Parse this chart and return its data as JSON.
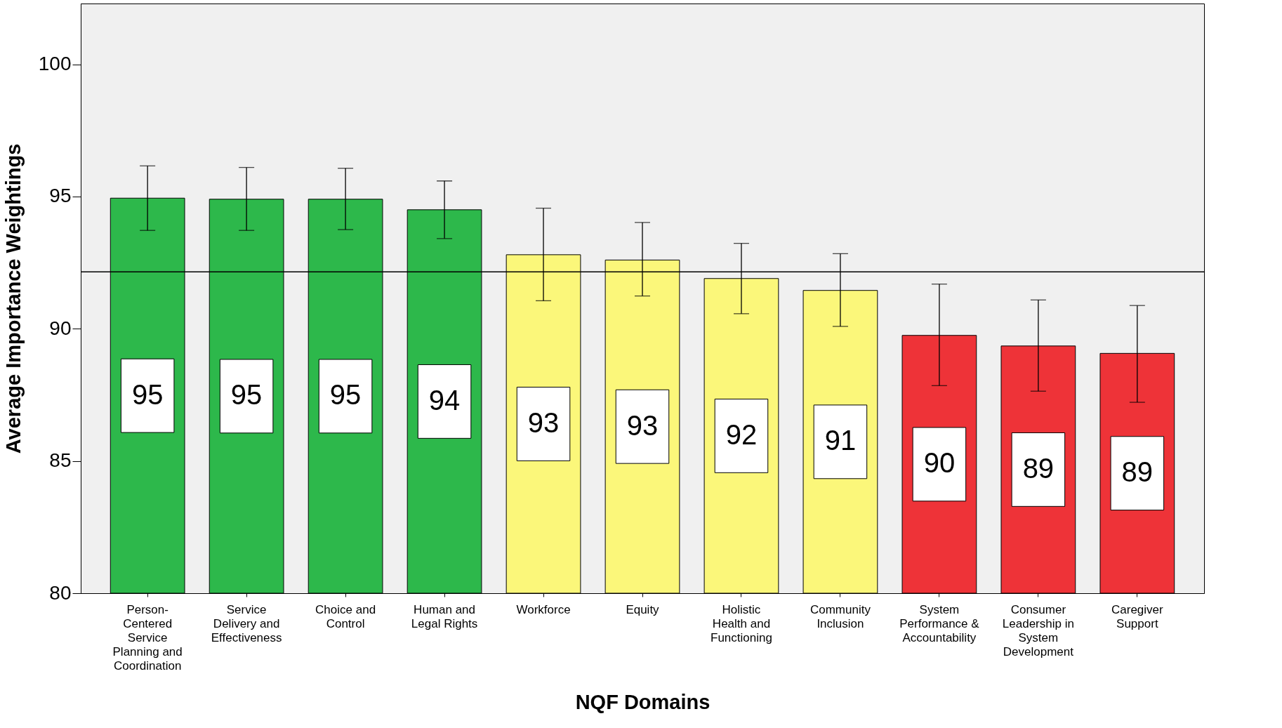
{
  "chart_data": {
    "type": "bar",
    "xlabel": "NQF Domains",
    "ylabel": "Average Importance Weightings",
    "categories": [
      "Person-Centered Service Planning and Coordination",
      "Service Delivery and Effectiveness",
      "Choice and Control",
      "Human and Legal Rights",
      "Workforce",
      "Equity",
      "Holistic Health and Functioning",
      "Community Inclusion",
      "System Performance & Accountability",
      "Consumer Leadership in System Development",
      "Caregiver Support"
    ],
    "values": [
      94.94,
      94.9,
      94.9,
      94.5,
      92.8,
      92.6,
      91.9,
      91.45,
      89.75,
      89.35,
      89.07
    ],
    "value_labels": [
      "95",
      "95",
      "95",
      "94",
      "93",
      "93",
      "92",
      "91",
      "90",
      "89",
      "89"
    ],
    "errors": [
      [
        93.72,
        96.16
      ],
      [
        93.72,
        96.1
      ],
      [
        93.75,
        96.07
      ],
      [
        93.41,
        95.59
      ],
      [
        91.06,
        94.56
      ],
      [
        91.24,
        94.02
      ],
      [
        90.57,
        93.23
      ],
      [
        90.09,
        92.84
      ],
      [
        87.85,
        91.69
      ],
      [
        87.64,
        91.09
      ],
      [
        87.22,
        90.88
      ]
    ],
    "colors": [
      "#2db84b",
      "#2db84b",
      "#2db84b",
      "#2db84b",
      "#fbf77a",
      "#fbf77a",
      "#fbf77a",
      "#fbf77a",
      "#ee3338",
      "#ee3338",
      "#ee3338"
    ],
    "ylim": [
      80,
      102.3
    ],
    "yticks": [
      80,
      85,
      90,
      95,
      100
    ],
    "ref_lines": [
      {
        "axis": "y",
        "value": 92.15
      }
    ],
    "grid": false
  }
}
